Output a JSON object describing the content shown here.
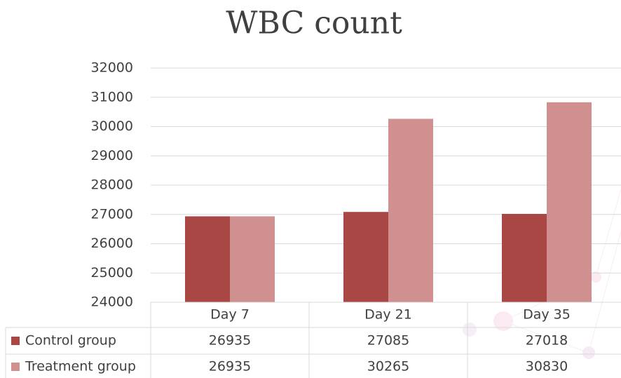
{
  "chart_data": {
    "type": "bar",
    "title": "WBC count",
    "categories": [
      "Day 7",
      "Day 21",
      "Day 35"
    ],
    "series": [
      {
        "name": "Control group",
        "color": "#a84744",
        "values": [
          26935,
          27085,
          27018
        ]
      },
      {
        "name": "Treatment group",
        "color": "#d19090",
        "values": [
          26935,
          30265,
          30830
        ]
      }
    ],
    "ylim": [
      24000,
      32000
    ],
    "yticks": [
      24000,
      25000,
      26000,
      27000,
      28000,
      29000,
      30000,
      31000,
      32000
    ],
    "grid": true
  }
}
